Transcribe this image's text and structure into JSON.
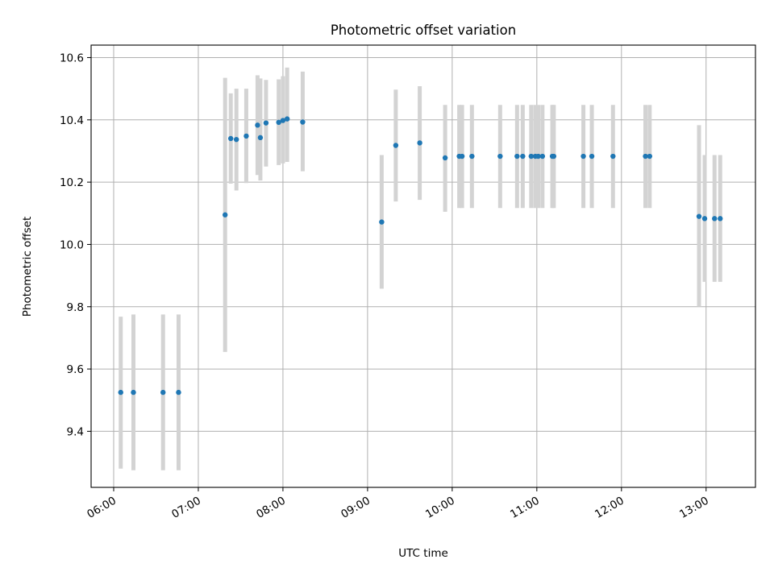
{
  "chart_data": {
    "type": "scatter",
    "title": "Photometric offset variation",
    "xlabel": "UTC time",
    "ylabel": "Photometric offset",
    "x_ticks": [
      "06:00",
      "07:00",
      "08:00",
      "09:00",
      "10:00",
      "11:00",
      "12:00",
      "13:00"
    ],
    "y_ticks": [
      "9.4",
      "9.6",
      "9.8",
      "10.0",
      "10.2",
      "10.4",
      "10.6"
    ],
    "xlim": [
      "05:44",
      "13:35"
    ],
    "ylim": [
      9.22,
      10.64
    ],
    "grid": true,
    "points": [
      {
        "x": "06:05",
        "y": 9.525,
        "err_low": 9.28,
        "err_high": 9.768
      },
      {
        "x": "06:14",
        "y": 9.525,
        "err_low": 9.275,
        "err_high": 9.775
      },
      {
        "x": "06:35",
        "y": 9.525,
        "err_low": 9.275,
        "err_high": 9.775
      },
      {
        "x": "06:46",
        "y": 9.525,
        "err_low": 9.275,
        "err_high": 9.775
      },
      {
        "x": "07:19",
        "y": 10.095,
        "err_low": 9.655,
        "err_high": 10.535
      },
      {
        "x": "07:23",
        "y": 10.34,
        "err_low": 10.195,
        "err_high": 10.485
      },
      {
        "x": "07:27",
        "y": 10.337,
        "err_low": 10.173,
        "err_high": 10.5
      },
      {
        "x": "07:34",
        "y": 10.348,
        "err_low": 10.197,
        "err_high": 10.5
      },
      {
        "x": "07:42",
        "y": 10.383,
        "err_low": 10.223,
        "err_high": 10.543
      },
      {
        "x": "07:44",
        "y": 10.343,
        "err_low": 10.205,
        "err_high": 10.533
      },
      {
        "x": "07:48",
        "y": 10.39,
        "err_low": 10.25,
        "err_high": 10.528
      },
      {
        "x": "07:57",
        "y": 10.392,
        "err_low": 10.255,
        "err_high": 10.53
      },
      {
        "x": "08:00",
        "y": 10.398,
        "err_low": 10.26,
        "err_high": 10.54
      },
      {
        "x": "08:03",
        "y": 10.403,
        "err_low": 10.265,
        "err_high": 10.568
      },
      {
        "x": "08:14",
        "y": 10.393,
        "err_low": 10.235,
        "err_high": 10.555
      },
      {
        "x": "09:10",
        "y": 10.072,
        "err_low": 9.858,
        "err_high": 10.287
      },
      {
        "x": "09:20",
        "y": 10.318,
        "err_low": 10.138,
        "err_high": 10.497
      },
      {
        "x": "09:37",
        "y": 10.326,
        "err_low": 10.143,
        "err_high": 10.508
      },
      {
        "x": "09:55",
        "y": 10.278,
        "err_low": 10.105,
        "err_high": 10.448
      },
      {
        "x": "10:05",
        "y": 10.283,
        "err_low": 10.117,
        "err_high": 10.448
      },
      {
        "x": "10:07",
        "y": 10.283,
        "err_low": 10.117,
        "err_high": 10.448
      },
      {
        "x": "10:14",
        "y": 10.283,
        "err_low": 10.117,
        "err_high": 10.448
      },
      {
        "x": "10:34",
        "y": 10.283,
        "err_low": 10.117,
        "err_high": 10.448
      },
      {
        "x": "10:46",
        "y": 10.283,
        "err_low": 10.117,
        "err_high": 10.448
      },
      {
        "x": "10:50",
        "y": 10.283,
        "err_low": 10.117,
        "err_high": 10.448
      },
      {
        "x": "10:56",
        "y": 10.283,
        "err_low": 10.117,
        "err_high": 10.448
      },
      {
        "x": "10:59",
        "y": 10.283,
        "err_low": 10.117,
        "err_high": 10.448
      },
      {
        "x": "11:01",
        "y": 10.283,
        "err_low": 10.117,
        "err_high": 10.448
      },
      {
        "x": "11:04",
        "y": 10.283,
        "err_low": 10.117,
        "err_high": 10.448
      },
      {
        "x": "11:11",
        "y": 10.283,
        "err_low": 10.117,
        "err_high": 10.448
      },
      {
        "x": "11:12",
        "y": 10.283,
        "err_low": 10.117,
        "err_high": 10.448
      },
      {
        "x": "11:33",
        "y": 10.283,
        "err_low": 10.117,
        "err_high": 10.448
      },
      {
        "x": "11:39",
        "y": 10.283,
        "err_low": 10.117,
        "err_high": 10.448
      },
      {
        "x": "11:54",
        "y": 10.283,
        "err_low": 10.117,
        "err_high": 10.448
      },
      {
        "x": "12:17",
        "y": 10.283,
        "err_low": 10.117,
        "err_high": 10.448
      },
      {
        "x": "12:20",
        "y": 10.283,
        "err_low": 10.117,
        "err_high": 10.448
      },
      {
        "x": "12:55",
        "y": 10.09,
        "err_low": 9.8,
        "err_high": 10.383
      },
      {
        "x": "12:59",
        "y": 10.083,
        "err_low": 9.88,
        "err_high": 10.287
      },
      {
        "x": "13:06",
        "y": 10.083,
        "err_low": 9.88,
        "err_high": 10.287
      },
      {
        "x": "13:10",
        "y": 10.083,
        "err_low": 9.88,
        "err_high": 10.287
      }
    ],
    "colors": {
      "point": "#1f77b4",
      "errorbar": "#d3d3d3",
      "grid": "#b0b0b0"
    }
  }
}
